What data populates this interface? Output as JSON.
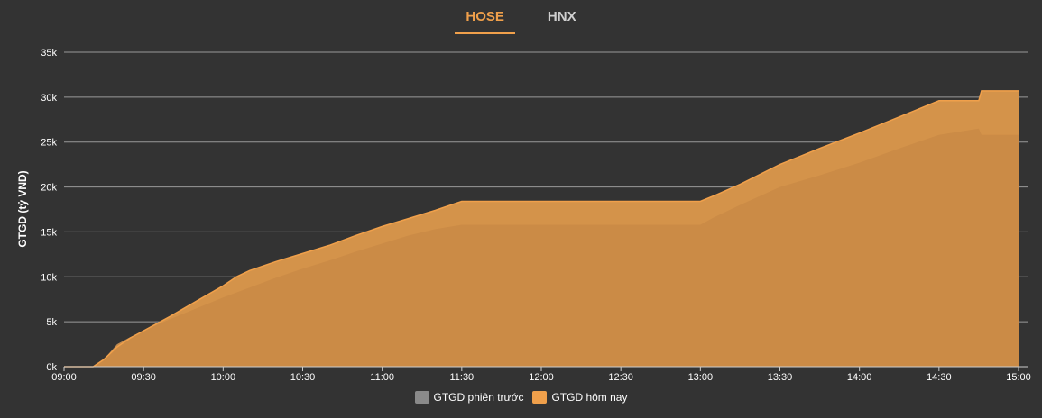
{
  "tabs": [
    {
      "label": "HOSE",
      "active": true
    },
    {
      "label": "HNX",
      "active": false
    }
  ],
  "colors": {
    "previous": "#8a8a8a",
    "today_fill": "#d4934a",
    "today_line": "#f0a04b",
    "previous_overlay": "#c98a45",
    "grid": "#9a9a9a",
    "background": "#333333"
  },
  "chart_data": {
    "type": "area",
    "title": "",
    "xlabel": "",
    "ylabel": "GTGD (tỷ VND)",
    "xlim": [
      "09:00",
      "15:00"
    ],
    "ylim": [
      0,
      35000
    ],
    "yticks": [
      0,
      5000,
      10000,
      15000,
      20000,
      25000,
      30000,
      35000
    ],
    "ytick_labels": [
      "0k",
      "5k",
      "10k",
      "15k",
      "20k",
      "25k",
      "30k",
      "35k"
    ],
    "xticks": [
      "09:00",
      "09:30",
      "10:00",
      "10:30",
      "11:00",
      "11:30",
      "12:00",
      "12:30",
      "13:00",
      "13:30",
      "14:00",
      "14:30",
      "15:00"
    ],
    "grid": true,
    "legend_position": "bottom",
    "series": [
      {
        "name": "GTGD phiên trước",
        "points": [
          [
            "09:00",
            0
          ],
          [
            "09:11",
            0
          ],
          [
            "09:15",
            800
          ],
          [
            "09:20",
            2500
          ],
          [
            "09:25",
            3300
          ],
          [
            "09:30",
            4000
          ],
          [
            "09:40",
            5300
          ],
          [
            "09:50",
            6500
          ],
          [
            "10:00",
            7700
          ],
          [
            "10:10",
            8800
          ],
          [
            "10:20",
            9900
          ],
          [
            "10:30",
            10900
          ],
          [
            "10:40",
            11800
          ],
          [
            "10:50",
            12800
          ],
          [
            "11:00",
            13700
          ],
          [
            "11:10",
            14600
          ],
          [
            "11:20",
            15300
          ],
          [
            "11:30",
            15800
          ],
          [
            "13:00",
            15800
          ],
          [
            "13:05",
            16600
          ],
          [
            "13:15",
            18000
          ],
          [
            "13:30",
            20000
          ],
          [
            "13:45",
            21300
          ],
          [
            "14:00",
            22700
          ],
          [
            "14:15",
            24300
          ],
          [
            "14:30",
            25800
          ],
          [
            "14:45",
            26500
          ],
          [
            "14:46",
            25800
          ],
          [
            "15:00",
            25800
          ]
        ]
      },
      {
        "name": "GTGD hôm nay",
        "points": [
          [
            "09:00",
            0
          ],
          [
            "09:11",
            0
          ],
          [
            "09:15",
            800
          ],
          [
            "09:20",
            2200
          ],
          [
            "09:25",
            3200
          ],
          [
            "09:30",
            4000
          ],
          [
            "09:40",
            5600
          ],
          [
            "09:50",
            7300
          ],
          [
            "10:00",
            9000
          ],
          [
            "10:05",
            10000
          ],
          [
            "10:10",
            10700
          ],
          [
            "10:20",
            11700
          ],
          [
            "10:30",
            12600
          ],
          [
            "10:40",
            13500
          ],
          [
            "10:50",
            14600
          ],
          [
            "11:00",
            15600
          ],
          [
            "11:10",
            16500
          ],
          [
            "11:20",
            17400
          ],
          [
            "11:30",
            18400
          ],
          [
            "13:00",
            18400
          ],
          [
            "13:05",
            19000
          ],
          [
            "13:15",
            20300
          ],
          [
            "13:30",
            22500
          ],
          [
            "13:45",
            24300
          ],
          [
            "14:00",
            26000
          ],
          [
            "14:15",
            27800
          ],
          [
            "14:30",
            29600
          ],
          [
            "14:45",
            29600
          ],
          [
            "14:46",
            30700
          ],
          [
            "15:00",
            30700
          ]
        ]
      }
    ]
  }
}
